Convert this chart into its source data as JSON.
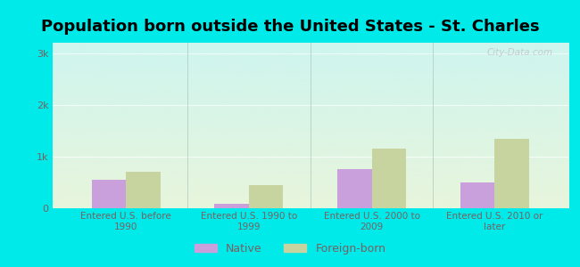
{
  "title": "Population born outside the United States - St. Charles",
  "categories": [
    "Entered U.S. before\n1990",
    "Entered U.S. 1990 to\n1999",
    "Entered U.S. 2000 to\n2009",
    "Entered U.S. 2010 or\nlater"
  ],
  "native_values": [
    550,
    80,
    750,
    500
  ],
  "foreign_values": [
    700,
    450,
    1150,
    1350
  ],
  "native_color": "#c9a0dc",
  "foreign_color": "#c8d4a0",
  "bg_top": "#cef5ef",
  "bg_bottom": "#e8f5dc",
  "outer_bg": "#00eaea",
  "yticks": [
    0,
    1000,
    2000,
    3000
  ],
  "ytick_labels": [
    "0",
    "1k",
    "2k",
    "3k"
  ],
  "ylim": [
    0,
    3200
  ],
  "legend_native": "Native",
  "legend_foreign": "Foreign-born",
  "title_fontsize": 13,
  "bar_width": 0.28,
  "tick_color": "#7a6060",
  "label_color": "#7a6060",
  "divider_color": "#b0ccc0",
  "watermark": "City-Data.com"
}
